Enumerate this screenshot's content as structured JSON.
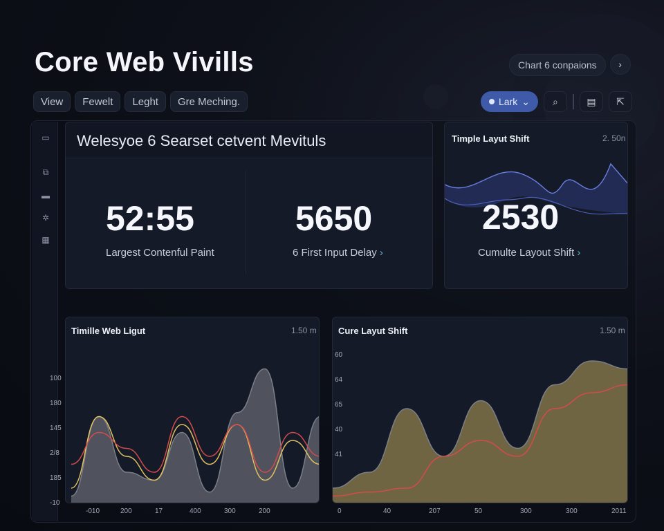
{
  "title": "Core Web Vivills",
  "top_actions": {
    "chart_button": "Chart 6 conpaions",
    "next_icon": "chevron-right-icon"
  },
  "filters": [
    "View",
    "Fewelt",
    "Leght",
    "Gre Meching."
  ],
  "toolbar": {
    "theme_label": "Lark",
    "search_icon": "search-icon",
    "doc_icon": "document-icon",
    "export_icon": "export-icon"
  },
  "sidebar": {
    "icons": [
      "calendar-icon",
      "link-icon",
      "card-icon",
      "gear-icon",
      "grid-icon"
    ]
  },
  "summary_card": {
    "heading": "Welesyoe 6 Searset cetvent Mevituls",
    "metrics": [
      {
        "value": "52:55",
        "label": "Largest Contenful Paint"
      },
      {
        "value": "5650",
        "label": "6 First Input Delay"
      }
    ]
  },
  "cls_card": {
    "title": "Timple Layut Shift",
    "sub": "2. 50n",
    "value": "2530",
    "label": "Cumulte Layout Shift"
  },
  "chart_left": {
    "title": "Timille Web Ligut",
    "sub": "1.50 m",
    "chart_data": {
      "type": "area",
      "y_ticks": [
        "100",
        "180",
        "145",
        "2/8",
        "185",
        "-10"
      ],
      "x_ticks": [
        "-010",
        "200",
        "17",
        "400",
        "300",
        "200"
      ],
      "series": [
        {
          "color": "#5b5e66",
          "values": [
            10,
            110,
            40,
            30,
            90,
            15,
            115,
            170,
            20,
            110
          ]
        },
        {
          "color": "#e0c161",
          "values": [
            20,
            110,
            60,
            30,
            100,
            50,
            100,
            30,
            80,
            50
          ]
        },
        {
          "color": "#d34b4b",
          "values": [
            50,
            90,
            70,
            40,
            110,
            60,
            100,
            40,
            90,
            60
          ]
        }
      ]
    }
  },
  "chart_right": {
    "title": "Cure Layut Shift",
    "sub": "1.50 m",
    "chart_data": {
      "type": "area",
      "y_ticks": [
        "60",
        "64",
        "65",
        "40",
        "41"
      ],
      "x_ticks": [
        "0",
        "40",
        "207",
        "50",
        "300",
        "300",
        "2011"
      ],
      "series": [
        {
          "color": "#e0c161",
          "values": [
            20,
            40,
            120,
            60,
            130,
            70,
            150,
            180,
            170
          ]
        },
        {
          "color": "#d34b4b",
          "values": [
            10,
            15,
            20,
            60,
            80,
            60,
            120,
            140,
            150
          ]
        }
      ]
    }
  }
}
